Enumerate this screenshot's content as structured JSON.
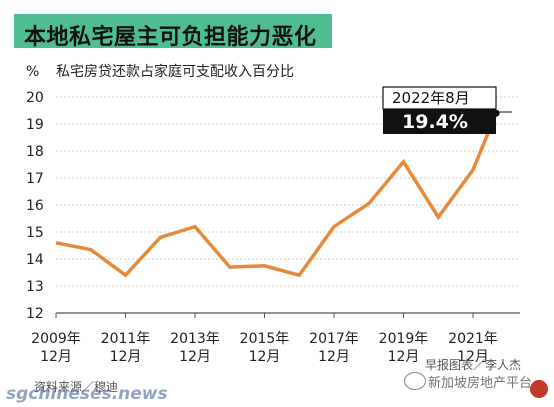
{
  "title": "本地私宅屋主可负担能力恶化",
  "source_left": "资料来源／穆迪",
  "source_right": "早报图表／李人杰",
  "watermark_left": "sgchineses.news",
  "watermark_right": "新加坡房地产平台",
  "colors": {
    "title_bg": "#4fbd8f",
    "line": "#e8893a",
    "callout_bg": "#111111",
    "grid": "#cfcfcf"
  },
  "chart_data": {
    "type": "line",
    "title": "本地私宅屋主可负担能力恶化",
    "ylabel_unit": "%",
    "ylabel": "私宅房贷还款占家庭可支配收入百分比",
    "ylim": [
      12,
      20
    ],
    "yticks": [
      12,
      13,
      14,
      15,
      16,
      17,
      18,
      19,
      20
    ],
    "grid": "horizontal",
    "xticks": [
      {
        "year": "2009年",
        "month": "12月",
        "t": 0
      },
      {
        "year": "2011年",
        "month": "12月",
        "t": 2
      },
      {
        "year": "2013年",
        "month": "12月",
        "t": 4
      },
      {
        "year": "2015年",
        "month": "12月",
        "t": 6
      },
      {
        "year": "2017年",
        "month": "12月",
        "t": 8
      },
      {
        "year": "2019年",
        "month": "12月",
        "t": 10
      },
      {
        "year": "2021年",
        "month": "12月",
        "t": 12
      }
    ],
    "x": [
      "2009-12",
      "2010-12",
      "2011-12",
      "2012-12",
      "2013-12",
      "2014-12",
      "2015-12",
      "2016-12",
      "2017-12",
      "2018-12",
      "2019-12",
      "2020-12",
      "2021-12",
      "2022-08"
    ],
    "values": [
      14.6,
      14.35,
      13.4,
      14.8,
      15.2,
      13.7,
      13.75,
      13.4,
      15.2,
      16.05,
      17.6,
      15.55,
      17.3,
      19.4
    ],
    "annotation": {
      "date": "2022年8月",
      "value": "19.4%"
    }
  }
}
